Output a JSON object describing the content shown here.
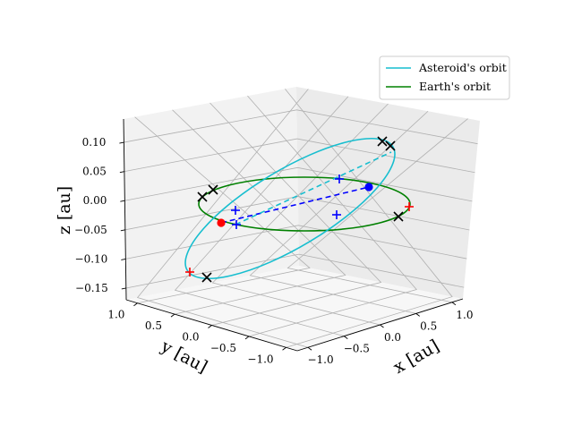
{
  "chart_data": {
    "type": "line3d",
    "title": "",
    "xlabel": "x [au]",
    "ylabel": "y [au]",
    "zlabel": "z [au]",
    "xlim": [
      -1.15,
      1.15
    ],
    "ylim": [
      -1.15,
      1.15
    ],
    "zlim": [
      -0.17,
      0.14
    ],
    "xticks": [
      -1.0,
      -0.5,
      0.0,
      0.5,
      1.0
    ],
    "xtick_labels": [
      "−1.0",
      "−0.5",
      "0.0",
      "0.5",
      "1.0"
    ],
    "yticks": [
      -1.0,
      -0.5,
      0.0,
      0.5,
      1.0
    ],
    "ytick_labels": [
      "−1.0",
      "−0.5",
      "0.0",
      "0.5",
      "1.0"
    ],
    "zticks": [
      -0.15,
      -0.1,
      -0.05,
      0.0,
      0.05,
      0.1
    ],
    "ztick_labels": [
      "−0.15",
      "−0.10",
      "−0.05",
      "0.00",
      "0.05",
      "0.10"
    ],
    "grid": true,
    "legend_position": "top-right",
    "series": [
      {
        "name": "Asteroid's orbit",
        "color": "#17becf",
        "kind": "ellipse",
        "semi_major_axis": 1.0,
        "inclination_deg": 7.5
      },
      {
        "name": "Earth's orbit",
        "color": "#008000",
        "kind": "circle",
        "radius": 1.0,
        "inclination_deg": 0
      }
    ],
    "line_of_nodes": {
      "color": "#0000ff",
      "style": "dashed"
    },
    "asteroid_line": {
      "color": "#17becf",
      "style": "dashed"
    },
    "markers": [
      {
        "label": "asteroid-ascending-node",
        "x": 0.98,
        "y": 0.18,
        "z": 0.0,
        "color": "#ff0000",
        "symbol": "circle"
      },
      {
        "label": "asteroid-descending-node",
        "x": -0.98,
        "y": -0.18,
        "z": 0.0,
        "color": "#0000ff",
        "symbol": "circle"
      }
    ]
  },
  "legend": {
    "asteroid_label": "Asteroid's orbit",
    "earth_label": "Earth's orbit"
  }
}
